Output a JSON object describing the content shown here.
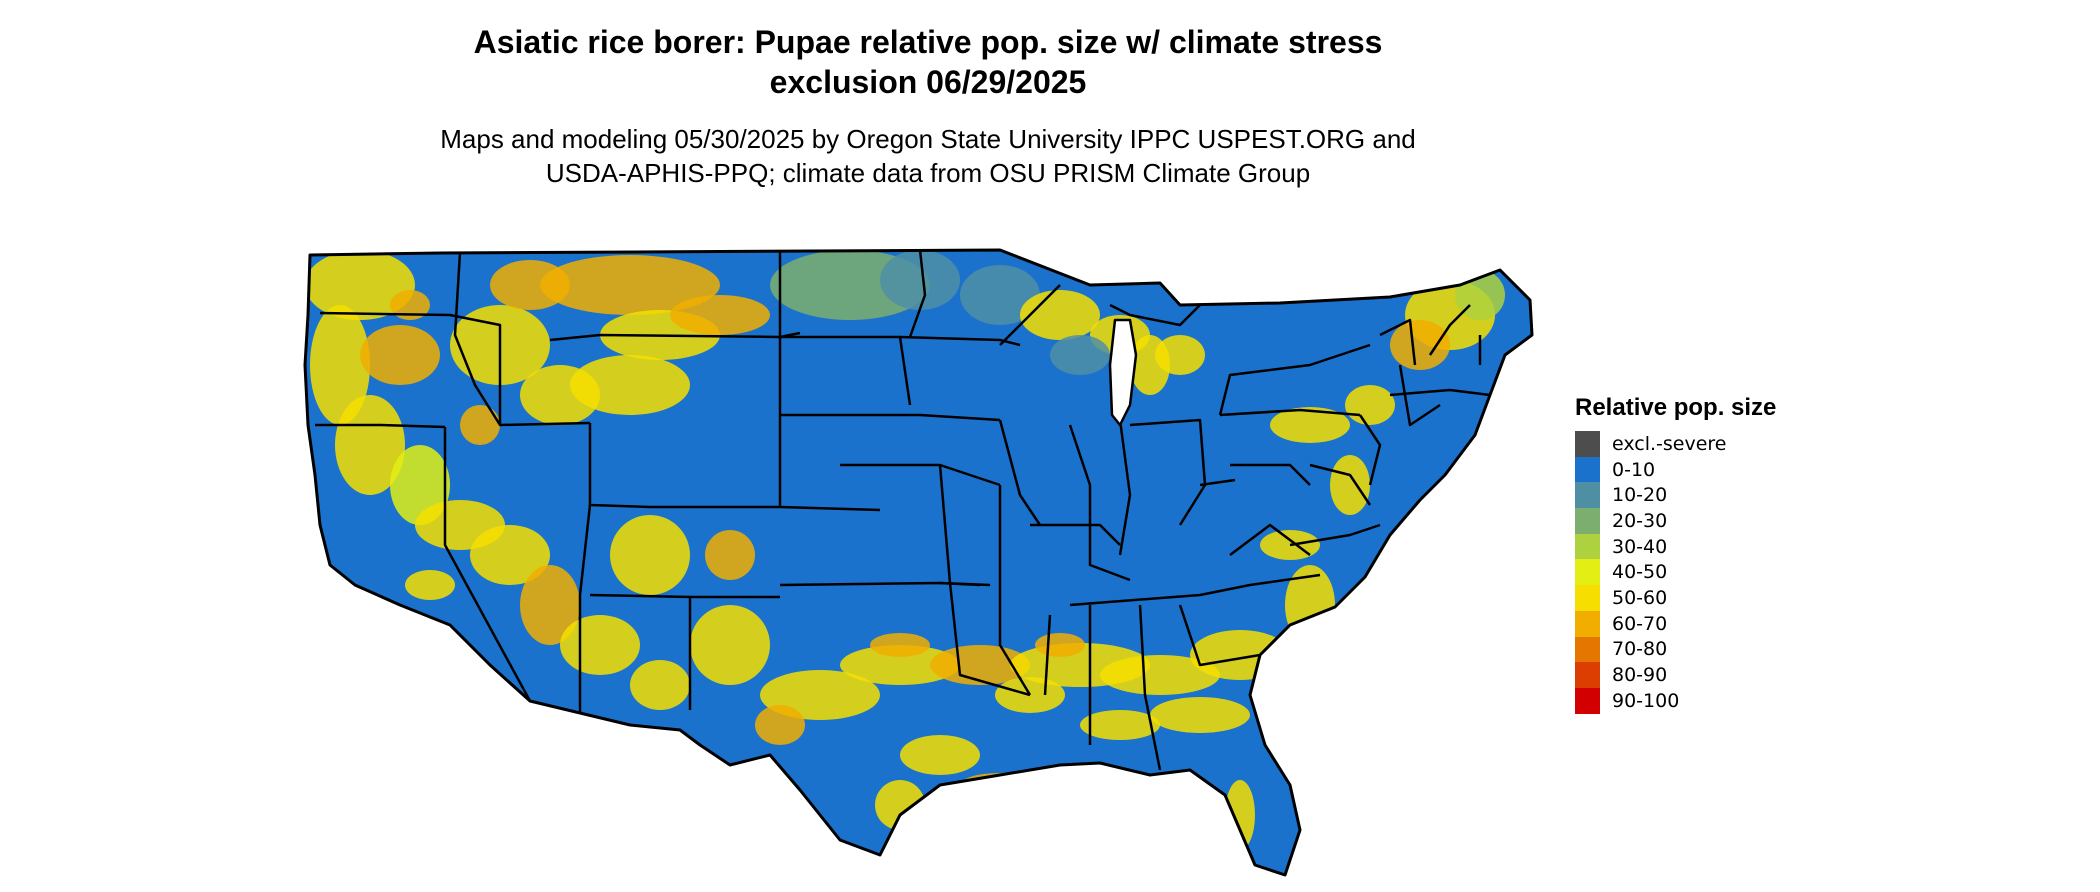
{
  "title": {
    "line1": "Asiatic rice borer: Pupae relative pop. size w/ climate stress",
    "line2": "exclusion 06/29/2025"
  },
  "subtitle": {
    "line1": "Maps and modeling 05/30/2025 by Oregon State University IPPC USPEST.ORG and",
    "line2": "USDA-APHIS-PPQ; climate data from OSU PRISM Climate Group"
  },
  "legend": {
    "title": "Relative pop. size",
    "items": [
      {
        "label": "excl.-severe",
        "color": "#4d4d4d"
      },
      {
        "label": "0-10",
        "color": "#1a72cc"
      },
      {
        "label": "10-20",
        "color": "#4f8fa4"
      },
      {
        "label": "20-30",
        "color": "#7cae6f"
      },
      {
        "label": "30-40",
        "color": "#aed13f"
      },
      {
        "label": "40-50",
        "color": "#e2ee14"
      },
      {
        "label": "50-60",
        "color": "#f6df00"
      },
      {
        "label": "60-70",
        "color": "#f1ae00"
      },
      {
        "label": "70-80",
        "color": "#e57600"
      },
      {
        "label": "80-90",
        "color": "#dc3d00"
      },
      {
        "label": "90-100",
        "color": "#d20000"
      }
    ]
  },
  "map": {
    "region": "Contiguous United States",
    "base_color": "#1a72cc",
    "border_color": "#000000"
  }
}
